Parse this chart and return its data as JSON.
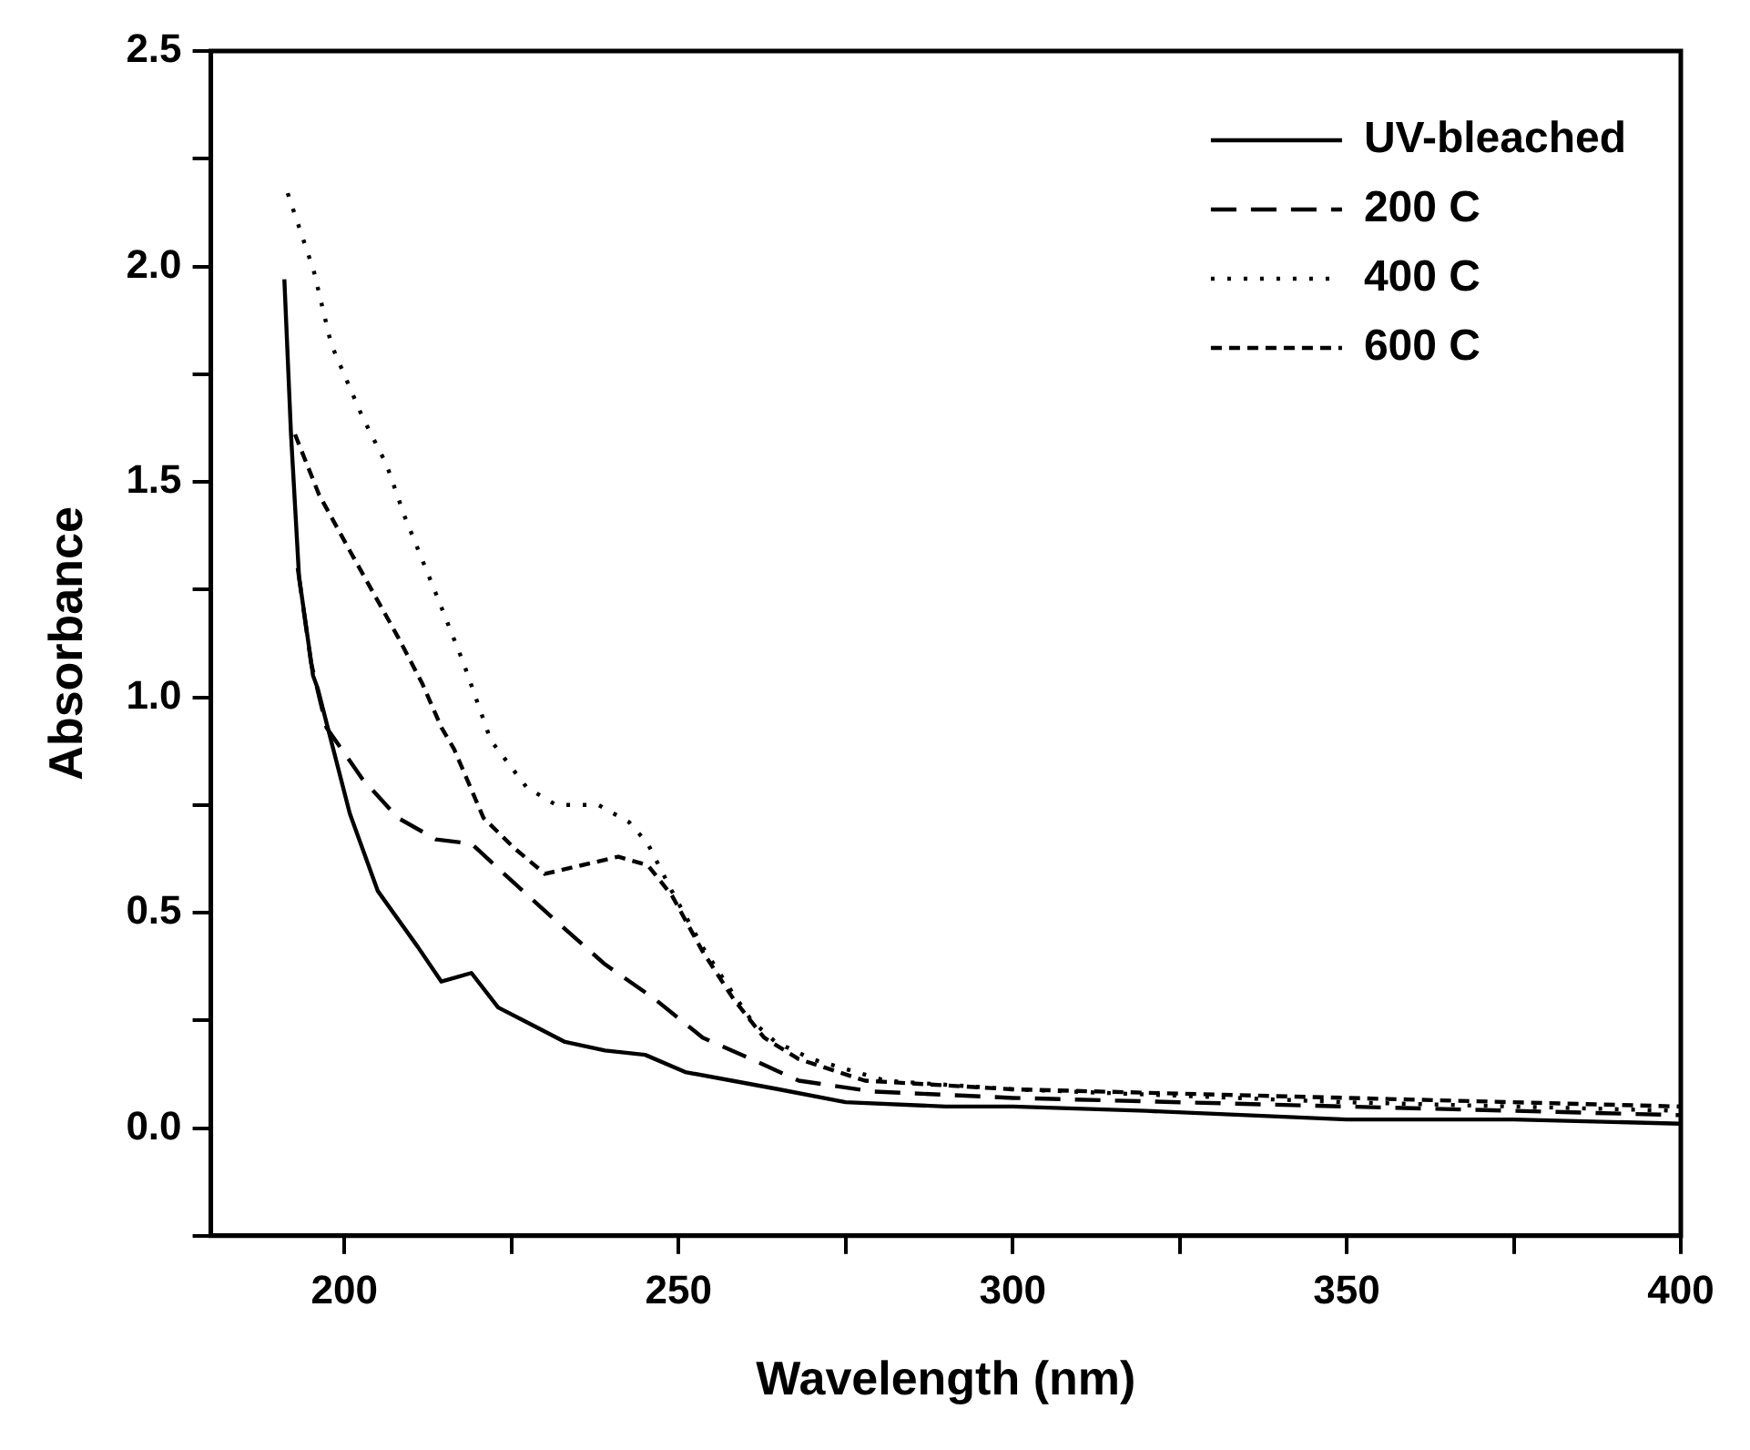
{
  "chart_data": {
    "type": "line",
    "xlabel": "Wavelength (nm)",
    "ylabel": "Absorbance",
    "xlim": [
      180,
      400
    ],
    "ylim": [
      -0.25,
      2.5
    ],
    "xticks": [
      {
        "value": 200,
        "label": "200"
      },
      {
        "value": 225,
        "label": null
      },
      {
        "value": 250,
        "label": "250"
      },
      {
        "value": 275,
        "label": null
      },
      {
        "value": 300,
        "label": "300"
      },
      {
        "value": 325,
        "label": null
      },
      {
        "value": 350,
        "label": "350"
      },
      {
        "value": 375,
        "label": null
      },
      {
        "value": 400,
        "label": "400"
      }
    ],
    "yticks": [
      {
        "value": -0.25,
        "label": null
      },
      {
        "value": 0,
        "label": "0.0"
      },
      {
        "value": 0.25,
        "label": null
      },
      {
        "value": 0.5,
        "label": "0.5"
      },
      {
        "value": 0.75,
        "label": null
      },
      {
        "value": 1,
        "label": "1.0"
      },
      {
        "value": 1.25,
        "label": null
      },
      {
        "value": 1.5,
        "label": "1.5"
      },
      {
        "value": 1.75,
        "label": null
      },
      {
        "value": 2,
        "label": "2.0"
      },
      {
        "value": 2.25,
        "label": null
      },
      {
        "value": 2.5,
        "label": "2.5"
      }
    ],
    "grid": false,
    "legend": "top right",
    "marker": "none",
    "series": [
      {
        "name": "UV-bleached",
        "color": "#000000",
        "line_style": "solid",
        "x": [
          191,
          192,
          193.2,
          195.3,
          196,
          200.8,
          205,
          211,
          214.5,
          219,
          223,
          228,
          233,
          239,
          245,
          251,
          258,
          265,
          275,
          290,
          300,
          320,
          350,
          375,
          400
        ],
        "values": [
          1.97,
          1.61,
          1.28,
          1.05,
          1.02,
          0.73,
          0.55,
          0.42,
          0.34,
          0.36,
          0.28,
          0.24,
          0.2,
          0.18,
          0.17,
          0.13,
          0.11,
          0.09,
          0.06,
          0.05,
          0.05,
          0.04,
          0.02,
          0.02,
          0.01
        ]
      },
      {
        "name": "200 C",
        "color": "#000000",
        "line_style": "dashed",
        "x": [
          193,
          195,
          197.3,
          202.7,
          208,
          213.7,
          219,
          224.6,
          231.7,
          239,
          246.4,
          253.6,
          260.9,
          268,
          279,
          300,
          350,
          400
        ],
        "values": [
          1.3,
          1.08,
          0.93,
          0.81,
          0.72,
          0.67,
          0.66,
          0.58,
          0.48,
          0.38,
          0.3,
          0.21,
          0.16,
          0.11,
          0.085,
          0.07,
          0.05,
          0.03
        ]
      },
      {
        "name": "400 C",
        "color": "#000000",
        "line_style": "dotted",
        "x": [
          191.5,
          195.4,
          198,
          202.7,
          206.3,
          209,
          213.7,
          217.8,
          221.9,
          227.3,
          231.7,
          238,
          242.6,
          245.4,
          249,
          253.6,
          257.4,
          260.9,
          264.5,
          270,
          281,
          300,
          350,
          400
        ],
        "values": [
          2.17,
          1.99,
          1.82,
          1.65,
          1.54,
          1.42,
          1.24,
          1.08,
          0.9,
          0.79,
          0.75,
          0.75,
          0.71,
          0.66,
          0.55,
          0.42,
          0.33,
          0.25,
          0.2,
          0.16,
          0.11,
          0.09,
          0.06,
          0.04
        ]
      },
      {
        "name": "600 C",
        "color": "#000000",
        "line_style": "dashed",
        "x": [
          192.6,
          196.2,
          200.8,
          204.4,
          208,
          211.7,
          214.5,
          216.4,
          220.8,
          225.4,
          230,
          235.5,
          241,
          245.4,
          249,
          253.6,
          258.2,
          262.8,
          268,
          277.9,
          300,
          350,
          400
        ],
        "values": [
          1.61,
          1.47,
          1.34,
          1.24,
          1.14,
          1.03,
          0.93,
          0.88,
          0.72,
          0.65,
          0.59,
          0.61,
          0.63,
          0.61,
          0.54,
          0.41,
          0.3,
          0.21,
          0.16,
          0.11,
          0.09,
          0.07,
          0.05
        ]
      }
    ]
  }
}
